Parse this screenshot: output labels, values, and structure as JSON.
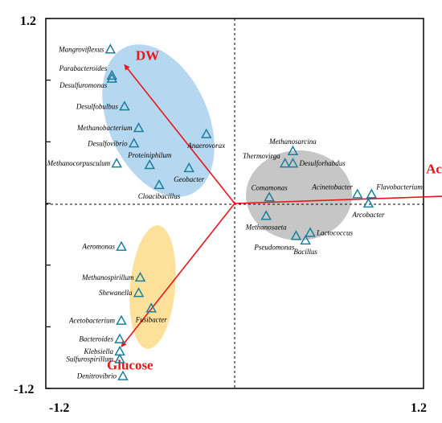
{
  "chart_data": {
    "type": "scatter",
    "title": "",
    "xlabel": "",
    "ylabel": "",
    "xlim": [
      -1.2,
      1.2
    ],
    "ylim": [
      -1.2,
      1.2
    ],
    "x_tick_labels": [
      "-1.2",
      "1.2"
    ],
    "y_tick_labels": [
      "1.2",
      "-1.2"
    ],
    "colors": {
      "marker": "#1a7f9c",
      "arrow": "#e8171b",
      "blue_group": "#9cc9ea",
      "gray_group": "#b4b3b3",
      "yellow_group": "#fcd779"
    },
    "arrows": [
      {
        "label": "DW",
        "x": -0.7,
        "y": 0.9
      },
      {
        "label": "Acetate",
        "x": 1.42,
        "y": 0.05
      },
      {
        "label": "Glucose",
        "x": -0.72,
        "y": -0.93
      }
    ],
    "points": [
      {
        "label": "Mangroviflexus",
        "x": -0.79,
        "y": 1.0
      },
      {
        "label": "Parabacteroides",
        "x": -0.78,
        "y": 0.83
      },
      {
        "label": "Desulfuromonas",
        "x": -0.78,
        "y": 0.81
      },
      {
        "label": "Desulfobulbus",
        "x": -0.7,
        "y": 0.63
      },
      {
        "label": "Methanobacterium",
        "x": -0.61,
        "y": 0.49
      },
      {
        "label": "Desulfovibrio",
        "x": -0.64,
        "y": 0.39
      },
      {
        "label": "Anaerovorax",
        "x": -0.18,
        "y": 0.45
      },
      {
        "label": "Proteiniphilum",
        "x": -0.54,
        "y": 0.25
      },
      {
        "label": "Methanocorpusculum",
        "x": -0.75,
        "y": 0.26
      },
      {
        "label": "Geobacter",
        "x": -0.29,
        "y": 0.23
      },
      {
        "label": "Cloacibacillus",
        "x": -0.48,
        "y": 0.12
      },
      {
        "label": "Methanosarcina",
        "x": 0.37,
        "y": 0.34
      },
      {
        "label": "Thermovirga",
        "x": 0.32,
        "y": 0.26
      },
      {
        "label": "Desulforhabdus",
        "x": 0.37,
        "y": 0.26
      },
      {
        "label": "Comamonas",
        "x": 0.22,
        "y": 0.04
      },
      {
        "label": "Acinetobacter",
        "x": 0.78,
        "y": 0.06
      },
      {
        "label": "Flavobacterium",
        "x": 0.87,
        "y": 0.06
      },
      {
        "label": "Arcobacter",
        "x": 0.85,
        "y": 0.0
      },
      {
        "label": "Methanosaeta",
        "x": 0.2,
        "y": -0.08
      },
      {
        "label": "Lactococcus",
        "x": 0.48,
        "y": -0.19
      },
      {
        "label": "Pseudomonas",
        "x": 0.39,
        "y": -0.21
      },
      {
        "label": "Bacillus",
        "x": 0.45,
        "y": -0.24
      },
      {
        "label": "Aeromonas",
        "x": -0.72,
        "y": -0.28
      },
      {
        "label": "Methanospirillum",
        "x": -0.6,
        "y": -0.48
      },
      {
        "label": "Shewanella",
        "x": -0.61,
        "y": -0.58
      },
      {
        "label": "Fusibacter",
        "x": -0.53,
        "y": -0.68
      },
      {
        "label": "Acetobacterium",
        "x": -0.72,
        "y": -0.76
      },
      {
        "label": "Bacteroides",
        "x": -0.73,
        "y": -0.88
      },
      {
        "label": "Klebsiella",
        "x": -0.73,
        "y": -0.96
      },
      {
        "label": "Sulfurospirillum",
        "x": -0.73,
        "y": -1.01
      },
      {
        "label": "Denitrovibrio",
        "x": -0.71,
        "y": -1.12
      }
    ]
  }
}
